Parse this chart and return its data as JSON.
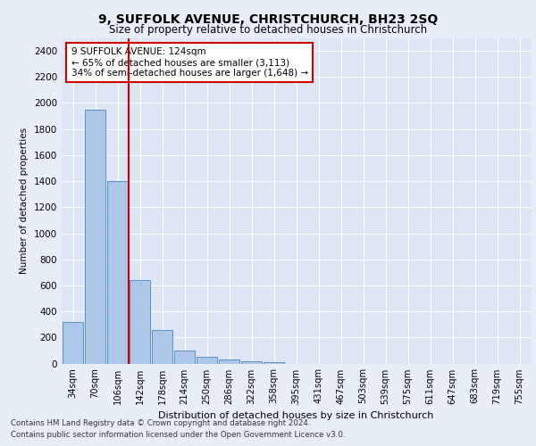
{
  "title1": "9, SUFFOLK AVENUE, CHRISTCHURCH, BH23 2SQ",
  "title2": "Size of property relative to detached houses in Christchurch",
  "xlabel": "Distribution of detached houses by size in Christchurch",
  "ylabel": "Number of detached properties",
  "categories": [
    "34sqm",
    "70sqm",
    "106sqm",
    "142sqm",
    "178sqm",
    "214sqm",
    "250sqm",
    "286sqm",
    "322sqm",
    "358sqm",
    "395sqm",
    "431sqm",
    "467sqm",
    "503sqm",
    "539sqm",
    "575sqm",
    "611sqm",
    "647sqm",
    "683sqm",
    "719sqm",
    "755sqm"
  ],
  "values": [
    320,
    1950,
    1400,
    640,
    260,
    100,
    50,
    30,
    20,
    10,
    0,
    0,
    0,
    0,
    0,
    0,
    0,
    0,
    0,
    0,
    0
  ],
  "bar_color": "#aec6e8",
  "bar_edge_color": "#5a8fc0",
  "vline_color": "#cc0000",
  "annotation_text": "9 SUFFOLK AVENUE: 124sqm\n← 65% of detached houses are smaller (3,113)\n34% of semi-detached houses are larger (1,648) →",
  "annotation_box_color": "#ffffff",
  "annotation_box_edge_color": "#cc0000",
  "ylim": [
    0,
    2500
  ],
  "yticks": [
    0,
    200,
    400,
    600,
    800,
    1000,
    1200,
    1400,
    1600,
    1800,
    2000,
    2200,
    2400
  ],
  "footer1": "Contains HM Land Registry data © Crown copyright and database right 2024.",
  "footer2": "Contains public sector information licensed under the Open Government Licence v3.0.",
  "bg_color": "#e8eef7",
  "plot_bg_color": "#dce6f5"
}
